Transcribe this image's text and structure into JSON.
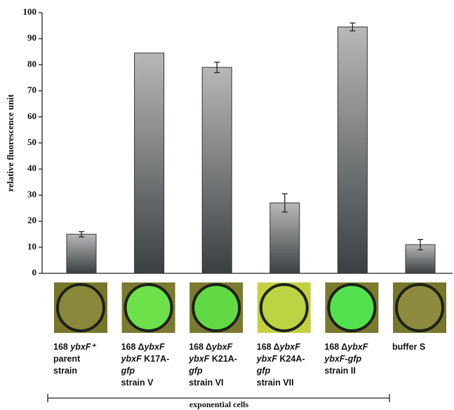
{
  "chart_data": {
    "type": "bar",
    "y_label": "relative fluorescence unit",
    "categories": [
      [
        [
          {
            "text": "168 ",
            "italic": false
          },
          {
            "text": "ybxF⁺",
            "italic": true
          }
        ],
        [
          {
            "text": "parent",
            "italic": false
          }
        ],
        [
          {
            "text": "strain",
            "italic": false
          }
        ]
      ],
      [
        [
          {
            "text": "168 Δ",
            "italic": false
          },
          {
            "text": "ybxF",
            "italic": true
          }
        ],
        [
          {
            "text": "ybxF",
            "italic": true
          },
          {
            "text": " K17A-",
            "italic": false
          }
        ],
        [
          {
            "text": "gfp",
            "italic": true
          }
        ],
        [
          {
            "text": "strain V",
            "italic": false
          }
        ]
      ],
      [
        [
          {
            "text": "168 Δ",
            "italic": false
          },
          {
            "text": "ybxF",
            "italic": true
          }
        ],
        [
          {
            "text": "ybxF",
            "italic": true
          },
          {
            "text": " K21A-",
            "italic": false
          }
        ],
        [
          {
            "text": "gfp",
            "italic": true
          }
        ],
        [
          {
            "text": "strain VI",
            "italic": false
          }
        ]
      ],
      [
        [
          {
            "text": "168 Δ",
            "italic": false
          },
          {
            "text": "ybxF",
            "italic": true
          }
        ],
        [
          {
            "text": "ybxF",
            "italic": true
          },
          {
            "text": " K24A-",
            "italic": false
          }
        ],
        [
          {
            "text": "gfp",
            "italic": true
          }
        ],
        [
          {
            "text": "strain VII",
            "italic": false
          }
        ]
      ],
      [
        [
          {
            "text": "168 Δ",
            "italic": false
          },
          {
            "text": "ybxF",
            "italic": true
          }
        ],
        [
          {
            "text": "ybxF-gfp",
            "italic": true
          }
        ],
        [
          {
            "text": "strain II",
            "italic": false
          }
        ]
      ],
      [
        [
          {
            "text": "buffer S",
            "italic": false
          }
        ]
      ]
    ],
    "values": [
      15,
      84.5,
      79,
      27,
      94.5,
      11
    ],
    "errors": [
      1,
      null,
      2,
      3.5,
      1.5,
      2
    ],
    "wells": [
      {
        "fill": "#8a883a",
        "background": "#77772c"
      },
      {
        "fill": "#6ee04a",
        "background": "#7a7a30"
      },
      {
        "fill": "#62da46",
        "background": "#7a7a30"
      },
      {
        "fill": "#bcd444",
        "background": "#c4d044"
      },
      {
        "fill": "#52e250",
        "background": "#7a7a30"
      },
      {
        "fill": "#8e8a3e",
        "background": "#77772c"
      }
    ],
    "group_label": "exponential cells",
    "ylim": [
      0,
      100
    ],
    "yticks": [
      0,
      10,
      20,
      30,
      40,
      50,
      60,
      70,
      80,
      90,
      100
    ]
  }
}
